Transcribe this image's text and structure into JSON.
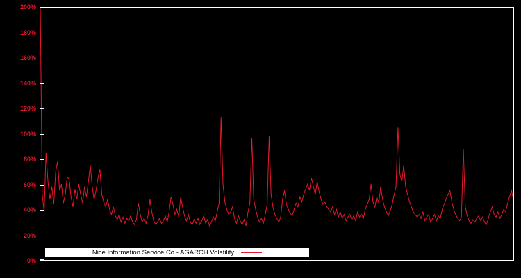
{
  "window": {
    "background": "#000000"
  },
  "chart_data": {
    "type": "line",
    "title": "",
    "xlabel": "",
    "ylabel": "",
    "x_tick_labels": [],
    "ylim": [
      0,
      200
    ],
    "y_unit": "%",
    "yticks": [
      "0%",
      "20%",
      "40%",
      "60%",
      "80%",
      "100%",
      "120%",
      "140%",
      "160%",
      "180%",
      "200%"
    ],
    "grid": false,
    "legend_position": "bottom-inside",
    "plot_border_color": "#ffffff",
    "axis_label_color": "#e8192c",
    "legend": {
      "label": "Nice Information Service Co - AGARCH Volatility",
      "background": "#ffffff",
      "text_color": "#000000",
      "line_color": "#e8192c"
    },
    "series": [
      {
        "name": "Nice Information Service Co - AGARCH Volatility",
        "color": "#e8192c",
        "values": [
          200,
          52,
          38,
          85,
          62,
          48,
          58,
          44,
          70,
          78,
          55,
          60,
          45,
          52,
          66,
          64,
          50,
          42,
          56,
          48,
          60,
          52,
          45,
          58,
          50,
          62,
          75,
          58,
          48,
          55,
          65,
          72,
          52,
          46,
          42,
          48,
          40,
          36,
          42,
          35,
          32,
          36,
          30,
          34,
          29,
          33,
          31,
          35,
          30,
          28,
          32,
          45,
          36,
          30,
          33,
          29,
          35,
          48,
          38,
          31,
          28,
          30,
          33,
          29,
          31,
          35,
          30,
          38,
          50,
          44,
          36,
          40,
          34,
          50,
          42,
          35,
          31,
          36,
          30,
          28,
          32,
          29,
          33,
          28,
          31,
          35,
          29,
          32,
          27,
          30,
          34,
          31,
          38,
          45,
          113,
          60,
          46,
          40,
          36,
          38,
          42,
          33,
          29,
          35,
          31,
          28,
          32,
          27,
          38,
          45,
          97,
          48,
          40,
          34,
          30,
          33,
          29,
          36,
          44,
          98,
          52,
          42,
          36,
          33,
          30,
          34,
          48,
          55,
          44,
          40,
          37,
          35,
          40,
          45,
          42,
          50,
          46,
          52,
          56,
          60,
          55,
          65,
          58,
          52,
          62,
          54,
          48,
          44,
          46,
          42,
          40,
          38,
          42,
          36,
          40,
          34,
          38,
          33,
          36,
          31,
          34,
          36,
          32,
          35,
          31,
          38,
          34,
          36,
          33,
          40,
          44,
          48,
          60,
          46,
          42,
          50,
          45,
          58,
          48,
          42,
          38,
          35,
          39,
          44,
          52,
          58,
          105,
          68,
          62,
          75,
          58,
          52,
          46,
          42,
          38,
          36,
          34,
          36,
          33,
          38,
          31,
          34,
          36,
          30,
          33,
          36,
          31,
          35,
          33,
          40,
          44,
          48,
          52,
          55,
          46,
          40,
          36,
          33,
          31,
          34,
          88,
          42,
          35,
          31,
          29,
          32,
          30,
          33,
          35,
          31,
          34,
          30,
          28,
          33,
          38,
          42,
          36,
          34,
          38,
          33,
          36,
          40,
          38,
          45,
          50,
          55,
          48
        ]
      }
    ]
  }
}
